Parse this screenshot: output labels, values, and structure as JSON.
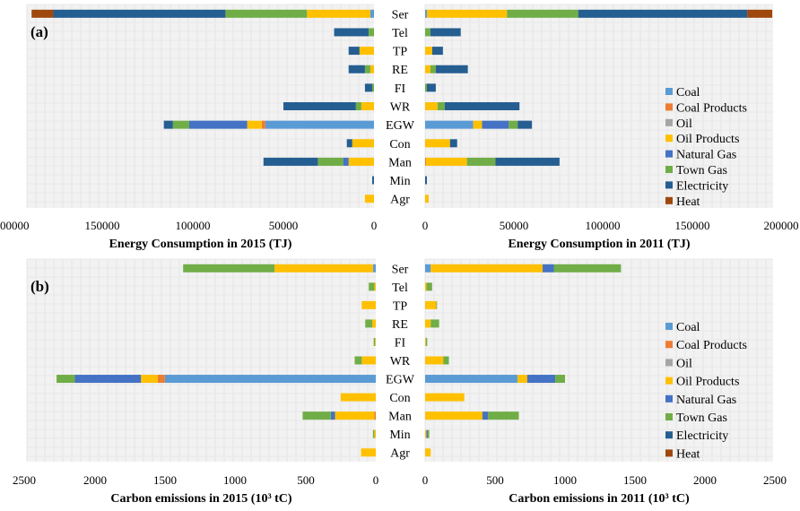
{
  "chart_data": [
    {
      "panel": "(a)",
      "type": "bar",
      "orientation": "horizontal-stacked",
      "categories": [
        "Ser",
        "Tel",
        "TP",
        "RE",
        "FI",
        "WR",
        "EGW",
        "Con",
        "Man",
        "Min",
        "Agr"
      ],
      "xlabel": "Energy Consumption in 2015 (TJ)",
      "xlim": [
        0,
        200000
      ],
      "ticks": [
        "200000",
        "150000",
        "100000",
        "50000",
        "0"
      ],
      "direction": "left",
      "grid": true,
      "series": [
        {
          "name": "Coal",
          "values": [
            2000,
            0,
            0,
            0,
            0,
            0,
            60000,
            0,
            0,
            0,
            0
          ]
        },
        {
          "name": "Coal Products",
          "values": [
            0,
            0,
            0,
            0,
            0,
            0,
            2000,
            0,
            0,
            0,
            0
          ]
        },
        {
          "name": "Oil",
          "values": [
            0,
            0,
            0,
            0,
            0,
            0,
            0,
            0,
            0,
            0,
            0
          ]
        },
        {
          "name": "Oil Products",
          "values": [
            35000,
            0,
            8000,
            2000,
            0,
            7000,
            8000,
            12000,
            14000,
            0,
            5000
          ]
        },
        {
          "name": "Natural Gas",
          "values": [
            0,
            0,
            0,
            0,
            0,
            0,
            32000,
            0,
            3000,
            0,
            0
          ]
        },
        {
          "name": "Town Gas",
          "values": [
            45000,
            3000,
            0,
            3000,
            1000,
            3000,
            9000,
            0,
            14000,
            0,
            0
          ]
        },
        {
          "name": "Electricity",
          "values": [
            95000,
            19000,
            6000,
            9000,
            4000,
            40000,
            5000,
            3000,
            30000,
            1000,
            0
          ]
        },
        {
          "name": "Heat",
          "values": [
            12000,
            0,
            0,
            0,
            0,
            0,
            0,
            0,
            0,
            0,
            0
          ]
        }
      ]
    },
    {
      "panel": "(a)",
      "type": "bar",
      "orientation": "horizontal-stacked",
      "categories": [
        "Ser",
        "Tel",
        "TP",
        "RE",
        "FI",
        "WR",
        "EGW",
        "Con",
        "Man",
        "Min",
        "Agr"
      ],
      "xlabel": "Energy Consumption in 2011 (TJ)",
      "xlim": [
        0,
        200000
      ],
      "ticks": [
        "0",
        "50000",
        "100000",
        "150000",
        "200000"
      ],
      "direction": "right",
      "grid": true,
      "series": [
        {
          "name": "Coal",
          "values": [
            1000,
            0,
            0,
            0,
            0,
            0,
            27000,
            0,
            0,
            0,
            0
          ]
        },
        {
          "name": "Coal Products",
          "values": [
            0,
            0,
            0,
            0,
            0,
            0,
            0,
            0,
            500,
            0,
            0
          ]
        },
        {
          "name": "Oil",
          "values": [
            0,
            0,
            0,
            0,
            0,
            0,
            0,
            0,
            0,
            0,
            0
          ]
        },
        {
          "name": "Oil Products",
          "values": [
            45000,
            0,
            4000,
            3000,
            0,
            7000,
            5000,
            14000,
            23000,
            0,
            2000
          ]
        },
        {
          "name": "Natural Gas",
          "values": [
            0,
            0,
            0,
            0,
            0,
            0,
            15000,
            0,
            0,
            0,
            0
          ]
        },
        {
          "name": "Town Gas",
          "values": [
            40000,
            3000,
            0,
            3000,
            1000,
            4000,
            5000,
            0,
            16000,
            0,
            0
          ]
        },
        {
          "name": "Electricity",
          "values": [
            95000,
            17000,
            6000,
            18000,
            5000,
            42000,
            8000,
            4000,
            36000,
            1000,
            0
          ]
        },
        {
          "name": "Heat",
          "values": [
            14000,
            0,
            0,
            0,
            0,
            0,
            0,
            0,
            0,
            0,
            0
          ]
        }
      ]
    },
    {
      "panel": "(b)",
      "type": "bar",
      "orientation": "horizontal-stacked",
      "categories": [
        "Ser",
        "Tel",
        "TP",
        "RE",
        "FI",
        "WR",
        "EGW",
        "Con",
        "Man",
        "Min",
        "Agr"
      ],
      "xlabel": "Carbon emissions in 2015 (10³ tC)",
      "xlim": [
        0,
        2500
      ],
      "ticks": [
        "2500",
        "2000",
        "1500",
        "1000",
        "500",
        "0"
      ],
      "direction": "left",
      "grid": true,
      "series": [
        {
          "name": "Coal",
          "values": [
            20,
            0,
            0,
            0,
            0,
            0,
            1500,
            0,
            0,
            0,
            0
          ]
        },
        {
          "name": "Coal Products",
          "values": [
            0,
            0,
            0,
            0,
            0,
            0,
            50,
            0,
            10,
            0,
            0
          ]
        },
        {
          "name": "Oil",
          "values": [
            0,
            0,
            0,
            0,
            0,
            0,
            0,
            0,
            0,
            0,
            0
          ]
        },
        {
          "name": "Oil Products",
          "values": [
            700,
            10,
            100,
            25,
            5,
            100,
            120,
            250,
            280,
            10,
            105
          ]
        },
        {
          "name": "Natural Gas",
          "values": [
            0,
            0,
            0,
            0,
            0,
            0,
            470,
            0,
            30,
            0,
            0
          ]
        },
        {
          "name": "Town Gas",
          "values": [
            650,
            40,
            0,
            50,
            10,
            50,
            130,
            0,
            200,
            10,
            0
          ]
        },
        {
          "name": "Electricity",
          "values": [
            0,
            0,
            0,
            0,
            0,
            0,
            0,
            0,
            0,
            0,
            0
          ]
        },
        {
          "name": "Heat",
          "values": [
            0,
            0,
            0,
            0,
            0,
            0,
            0,
            0,
            0,
            0,
            0
          ]
        }
      ]
    },
    {
      "panel": "(b)",
      "type": "bar",
      "orientation": "horizontal-stacked",
      "categories": [
        "Ser",
        "Tel",
        "TP",
        "RE",
        "FI",
        "WR",
        "EGW",
        "Con",
        "Man",
        "Min",
        "Agr"
      ],
      "xlabel": "Carbon emissions in 2011 (10³ tC)",
      "xlim": [
        0,
        2500
      ],
      "ticks": [
        "0",
        "500",
        "1000",
        "1500",
        "2000",
        "2500"
      ],
      "direction": "right",
      "grid": true,
      "series": [
        {
          "name": "Coal",
          "values": [
            40,
            0,
            0,
            0,
            0,
            0,
            660,
            0,
            0,
            0,
            0
          ]
        },
        {
          "name": "Coal Products",
          "values": [
            0,
            0,
            0,
            0,
            0,
            0,
            0,
            0,
            0,
            0,
            0
          ]
        },
        {
          "name": "Oil",
          "values": [
            0,
            0,
            0,
            0,
            0,
            0,
            0,
            0,
            0,
            0,
            0
          ]
        },
        {
          "name": "Oil Products",
          "values": [
            800,
            10,
            80,
            40,
            5,
            130,
            70,
            280,
            410,
            10,
            40
          ]
        },
        {
          "name": "Natural Gas",
          "values": [
            80,
            0,
            0,
            0,
            0,
            0,
            200,
            0,
            40,
            10,
            0
          ]
        },
        {
          "name": "Town Gas",
          "values": [
            480,
            40,
            5,
            60,
            10,
            40,
            70,
            0,
            220,
            10,
            0
          ]
        },
        {
          "name": "Electricity",
          "values": [
            0,
            0,
            0,
            0,
            0,
            0,
            0,
            0,
            0,
            0,
            0
          ]
        },
        {
          "name": "Heat",
          "values": [
            0,
            0,
            0,
            0,
            0,
            0,
            0,
            0,
            0,
            0,
            0
          ]
        }
      ]
    }
  ],
  "legend": {
    "placement": "right",
    "entries": [
      {
        "name": "Coal",
        "color": "#5B9BD5"
      },
      {
        "name": "Coal Products",
        "color": "#ED7D31"
      },
      {
        "name": "Oil",
        "color": "#A5A5A5"
      },
      {
        "name": "Oil Products",
        "color": "#FFC000"
      },
      {
        "name": "Natural Gas",
        "color": "#4472C4"
      },
      {
        "name": "Town Gas",
        "color": "#70AD47"
      },
      {
        "name": "Electricity",
        "color": "#255E91"
      },
      {
        "name": "Heat",
        "color": "#9E480E"
      }
    ]
  }
}
